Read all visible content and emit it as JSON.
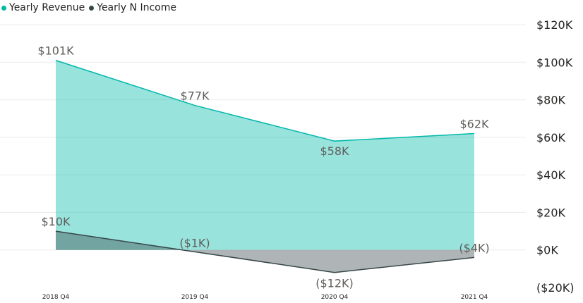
{
  "chart_data": {
    "type": "area",
    "categories": [
      "2018 Q4",
      "2019 Q4",
      "2020 Q4",
      "2021 Q4"
    ],
    "series": [
      {
        "name": "Yearly Revenue",
        "values": [
          101,
          77,
          58,
          62
        ],
        "labels": [
          "$101K",
          "$77K",
          "$58K",
          "$62K"
        ],
        "color": "#01b8aa"
      },
      {
        "name": "Yearly N Income",
        "values": [
          10,
          -1,
          -12,
          -4
        ],
        "labels": [
          "$10K",
          "($1K)",
          "($12K)",
          "($4K)"
        ],
        "color": "#374649"
      }
    ],
    "units": "thousands USD",
    "ylim": [
      -20,
      120
    ],
    "yticks": [
      {
        "value": 120,
        "label": "$120K"
      },
      {
        "value": 100,
        "label": "$100K"
      },
      {
        "value": 80,
        "label": "$80K"
      },
      {
        "value": 60,
        "label": "$60K"
      },
      {
        "value": 40,
        "label": "$40K"
      },
      {
        "value": 20,
        "label": "$20K"
      },
      {
        "value": 0,
        "label": "$0K"
      },
      {
        "value": -20,
        "label": "($20K)"
      }
    ],
    "title": "",
    "xlabel": "",
    "ylabel": "",
    "grid": true,
    "legend_position": "top-left",
    "y_axis_position": "right"
  }
}
